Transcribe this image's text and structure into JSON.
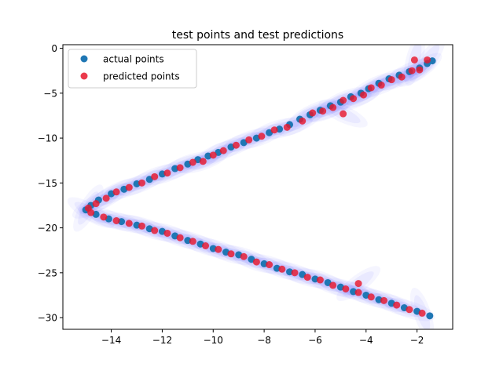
{
  "chart_data": {
    "type": "scatter",
    "title": "test points and test predictions",
    "xlabel": "",
    "ylabel": "",
    "xlim": [
      -15.9,
      -0.6
    ],
    "ylim": [
      -31.3,
      0.4
    ],
    "x_ticks": [
      -14,
      -12,
      -10,
      -8,
      -6,
      -4,
      -2
    ],
    "y_ticks": [
      0,
      -5,
      -10,
      -15,
      -20,
      -25,
      -30
    ],
    "x_tick_labels": [
      "−14",
      "−12",
      "−10",
      "−8",
      "−6",
      "−4",
      "−2"
    ],
    "y_tick_labels": [
      "0",
      "−5",
      "−10",
      "−15",
      "−20",
      "−25",
      "−30"
    ],
    "grid": false,
    "legend_position": "upper-left",
    "uncertainty_band_color": "#3a3aff",
    "series": [
      {
        "name": "actual points",
        "color": "#1f77b4",
        "points": [
          [
            -1.4,
            -1.4
          ],
          [
            -1.6,
            -1.7
          ],
          [
            -1.9,
            -2.2
          ],
          [
            -2.3,
            -2.6
          ],
          [
            -2.7,
            -3.0
          ],
          [
            -3.1,
            -3.4
          ],
          [
            -3.5,
            -3.9
          ],
          [
            -3.9,
            -4.5
          ],
          [
            -4.2,
            -5.0
          ],
          [
            -4.6,
            -5.4
          ],
          [
            -5.0,
            -6.0
          ],
          [
            -5.4,
            -6.4
          ],
          [
            -5.8,
            -6.9
          ],
          [
            -6.2,
            -7.4
          ],
          [
            -6.6,
            -7.9
          ],
          [
            -7.0,
            -8.5
          ],
          [
            -7.4,
            -9.0
          ],
          [
            -7.8,
            -9.4
          ],
          [
            -8.3,
            -10.0
          ],
          [
            -8.8,
            -10.5
          ],
          [
            -9.3,
            -11.0
          ],
          [
            -9.8,
            -11.6
          ],
          [
            -10.2,
            -12.0
          ],
          [
            -10.6,
            -12.4
          ],
          [
            -11.0,
            -12.9
          ],
          [
            -11.5,
            -13.4
          ],
          [
            -12.0,
            -14.0
          ],
          [
            -12.5,
            -14.6
          ],
          [
            -13.0,
            -15.1
          ],
          [
            -13.5,
            -15.7
          ],
          [
            -14.0,
            -16.2
          ],
          [
            -14.5,
            -16.9
          ],
          [
            -14.8,
            -17.5
          ],
          [
            -15.0,
            -18.0
          ],
          [
            -14.6,
            -18.5
          ],
          [
            -14.1,
            -19.0
          ],
          [
            -13.6,
            -19.3
          ],
          [
            -13.0,
            -19.7
          ],
          [
            -12.5,
            -20.1
          ],
          [
            -12.0,
            -20.4
          ],
          [
            -11.5,
            -20.9
          ],
          [
            -11.0,
            -21.4
          ],
          [
            -10.5,
            -21.8
          ],
          [
            -10.0,
            -22.3
          ],
          [
            -9.5,
            -22.7
          ],
          [
            -9.0,
            -23.0
          ],
          [
            -8.5,
            -23.5
          ],
          [
            -8.0,
            -24.0
          ],
          [
            -7.5,
            -24.5
          ],
          [
            -7.0,
            -24.9
          ],
          [
            -6.5,
            -25.2
          ],
          [
            -6.0,
            -25.7
          ],
          [
            -5.5,
            -26.1
          ],
          [
            -5.0,
            -26.6
          ],
          [
            -4.5,
            -27.1
          ],
          [
            -4.0,
            -27.5
          ],
          [
            -3.5,
            -28.0
          ],
          [
            -3.0,
            -28.4
          ],
          [
            -2.5,
            -28.9
          ],
          [
            -2.0,
            -29.3
          ],
          [
            -1.5,
            -29.8
          ]
        ]
      },
      {
        "name": "predicted points",
        "color": "#e8182d",
        "points": [
          [
            -1.6,
            -1.3
          ],
          [
            -1.9,
            -2.4
          ],
          [
            -2.2,
            -2.5
          ],
          [
            -2.6,
            -3.2
          ],
          [
            -3.0,
            -3.5
          ],
          [
            -3.4,
            -4.1
          ],
          [
            -3.8,
            -4.4
          ],
          [
            -4.1,
            -5.2
          ],
          [
            -4.5,
            -5.6
          ],
          [
            -4.9,
            -5.8
          ],
          [
            -5.3,
            -6.6
          ],
          [
            -5.7,
            -7.0
          ],
          [
            -6.1,
            -7.2
          ],
          [
            -6.5,
            -8.1
          ],
          [
            -7.1,
            -8.8
          ],
          [
            -7.6,
            -9.1
          ],
          [
            -8.1,
            -9.8
          ],
          [
            -8.6,
            -10.2
          ],
          [
            -9.1,
            -10.8
          ],
          [
            -9.6,
            -11.4
          ],
          [
            -10.0,
            -11.9
          ],
          [
            -10.4,
            -12.6
          ],
          [
            -10.8,
            -12.7
          ],
          [
            -11.3,
            -13.3
          ],
          [
            -11.8,
            -13.9
          ],
          [
            -12.3,
            -14.3
          ],
          [
            -12.8,
            -15.0
          ],
          [
            -13.3,
            -15.5
          ],
          [
            -13.8,
            -16.0
          ],
          [
            -14.2,
            -16.7
          ],
          [
            -14.6,
            -17.3
          ],
          [
            -14.9,
            -17.8
          ],
          [
            -14.8,
            -18.3
          ],
          [
            -14.3,
            -18.8
          ],
          [
            -13.8,
            -19.2
          ],
          [
            -13.3,
            -19.5
          ],
          [
            -12.8,
            -19.8
          ],
          [
            -12.3,
            -20.3
          ],
          [
            -11.8,
            -20.6
          ],
          [
            -11.3,
            -21.1
          ],
          [
            -10.8,
            -21.5
          ],
          [
            -10.3,
            -22.0
          ],
          [
            -9.8,
            -22.4
          ],
          [
            -9.3,
            -22.9
          ],
          [
            -8.8,
            -23.2
          ],
          [
            -8.3,
            -23.8
          ],
          [
            -7.8,
            -24.1
          ],
          [
            -7.3,
            -24.6
          ],
          [
            -6.8,
            -25.0
          ],
          [
            -6.3,
            -25.5
          ],
          [
            -5.8,
            -25.8
          ],
          [
            -5.3,
            -26.4
          ],
          [
            -4.8,
            -26.8
          ],
          [
            -4.3,
            -27.2
          ],
          [
            -3.8,
            -27.7
          ],
          [
            -3.3,
            -28.1
          ],
          [
            -2.8,
            -28.6
          ],
          [
            -2.3,
            -29.1
          ],
          [
            -1.8,
            -29.5
          ],
          [
            -4.9,
            -7.3
          ],
          [
            -4.3,
            -26.2
          ],
          [
            -2.1,
            -1.3
          ]
        ]
      }
    ]
  }
}
